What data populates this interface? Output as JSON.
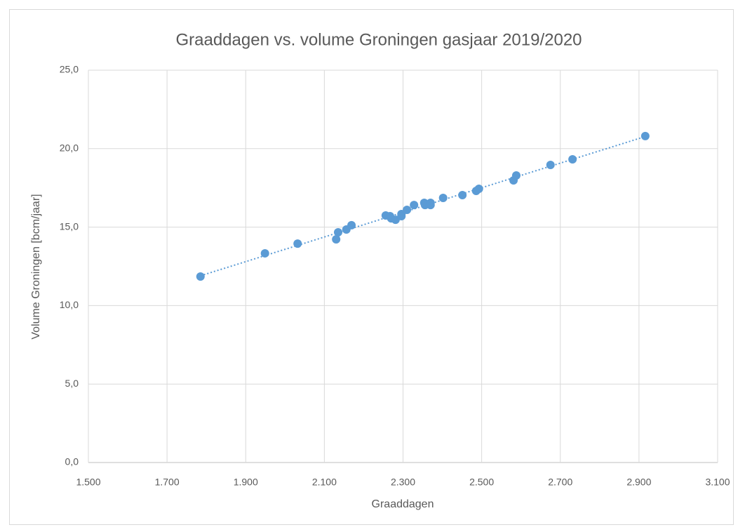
{
  "chart_data": {
    "type": "scatter",
    "title": "Graaddagen vs. volume Groningen gasjaar 2019/2020",
    "x_label": "Graaddagen",
    "y_label": "Volume Groningen [bcm/jaar]",
    "color": "#5b9bd5",
    "trendline": true,
    "grid": true,
    "x": [
      1785,
      1949,
      2032,
      2130,
      2135,
      2156,
      2169,
      2256,
      2267,
      2270,
      2281,
      2296,
      2296,
      2310,
      2328,
      2354,
      2356,
      2370,
      2370,
      2402,
      2451,
      2486,
      2493,
      2581,
      2588,
      2675,
      2731,
      2916
    ],
    "values": [
      11.85,
      13.33,
      13.95,
      14.22,
      14.67,
      14.85,
      15.12,
      15.74,
      15.7,
      15.56,
      15.47,
      15.83,
      15.7,
      16.1,
      16.41,
      16.55,
      16.41,
      16.55,
      16.41,
      16.86,
      17.04,
      17.31,
      17.44,
      17.98,
      18.29,
      18.96,
      19.32,
      20.8
    ],
    "xlim": [
      1500,
      3100
    ],
    "xticks": [
      {
        "value": 1500,
        "label": "1.500"
      },
      {
        "value": 1700,
        "label": "1.700"
      },
      {
        "value": 1900,
        "label": "1.900"
      },
      {
        "value": 2100,
        "label": "2.100"
      },
      {
        "value": 2300,
        "label": "2.300"
      },
      {
        "value": 2500,
        "label": "2.500"
      },
      {
        "value": 2700,
        "label": "2.700"
      },
      {
        "value": 2900,
        "label": "2.900"
      },
      {
        "value": 3100,
        "label": "3.100"
      }
    ],
    "ylim": [
      0,
      25
    ],
    "yticks": [
      {
        "value": 0,
        "label": "0,0"
      },
      {
        "value": 5,
        "label": "5,0"
      },
      {
        "value": 10,
        "label": "10,0"
      },
      {
        "value": 15,
        "label": "15,0"
      },
      {
        "value": 20,
        "label": "20,0"
      },
      {
        "value": 25,
        "label": "25,0"
      }
    ]
  }
}
